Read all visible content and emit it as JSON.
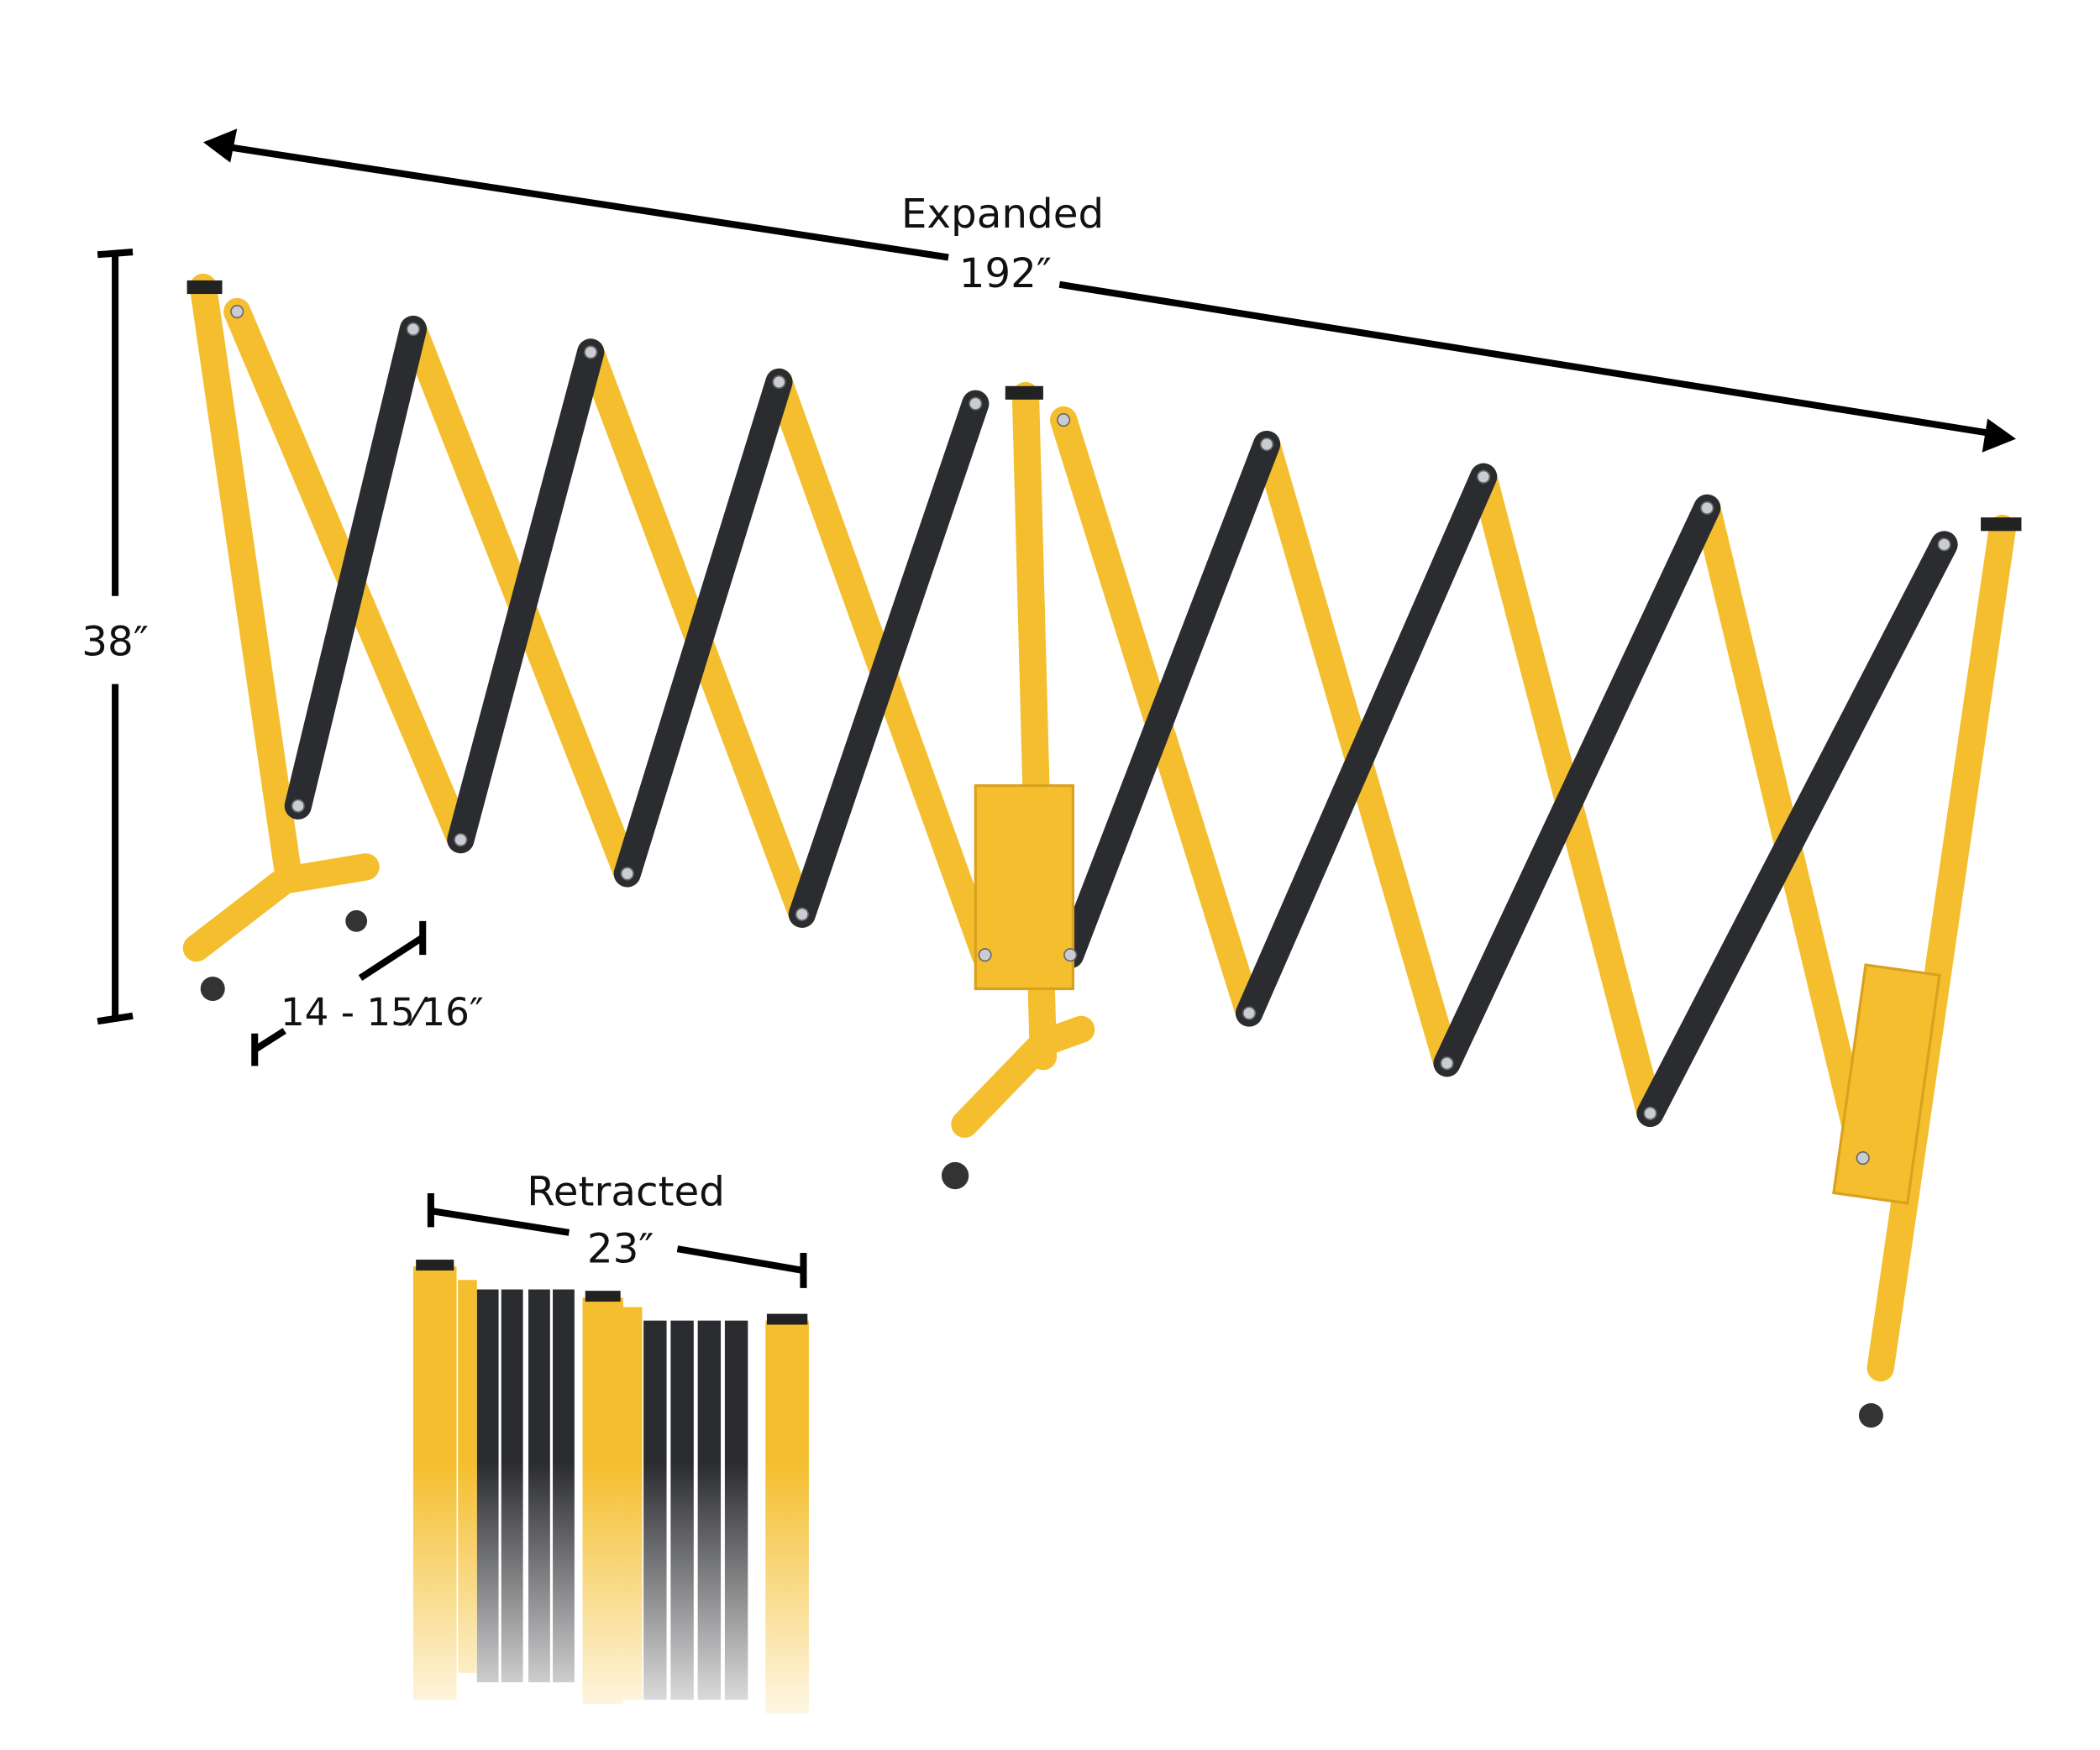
{
  "dimensions": {
    "expanded_label": "Expanded",
    "expanded_value": "192″",
    "height_value": "38″",
    "base_value": "14 - 15⁄16″",
    "retracted_label": "Retracted",
    "retracted_value": "23″"
  },
  "colors": {
    "frame_yellow": "#F4BE2E",
    "arm_black": "#2B2C30",
    "dimension_line": "#000000"
  }
}
